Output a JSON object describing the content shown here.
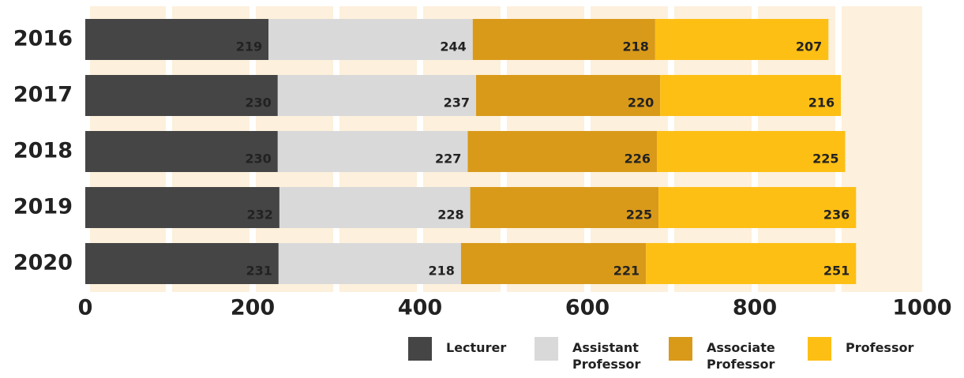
{
  "chart_data": {
    "type": "stacked_bar_horizontal",
    "categories": [
      "2016",
      "2017",
      "2018",
      "2019",
      "2020"
    ],
    "series": [
      {
        "name": "Lecturer",
        "color": "#454545",
        "values": [
          219,
          230,
          230,
          232,
          231
        ]
      },
      {
        "name": "Assistant Professor",
        "color": "#d9d9da",
        "values": [
          244,
          237,
          227,
          228,
          218
        ]
      },
      {
        "name": "Associate Professor",
        "color": "#d99a1a",
        "values": [
          218,
          220,
          226,
          225,
          221
        ]
      },
      {
        "name": "Professor",
        "color": "#fdbf14",
        "values": [
          207,
          216,
          225,
          236,
          251
        ]
      }
    ],
    "xlim": [
      0,
      1000
    ],
    "xticks": [
      0,
      200,
      400,
      600,
      800,
      1000
    ],
    "grid": true,
    "legend": "bottom"
  }
}
